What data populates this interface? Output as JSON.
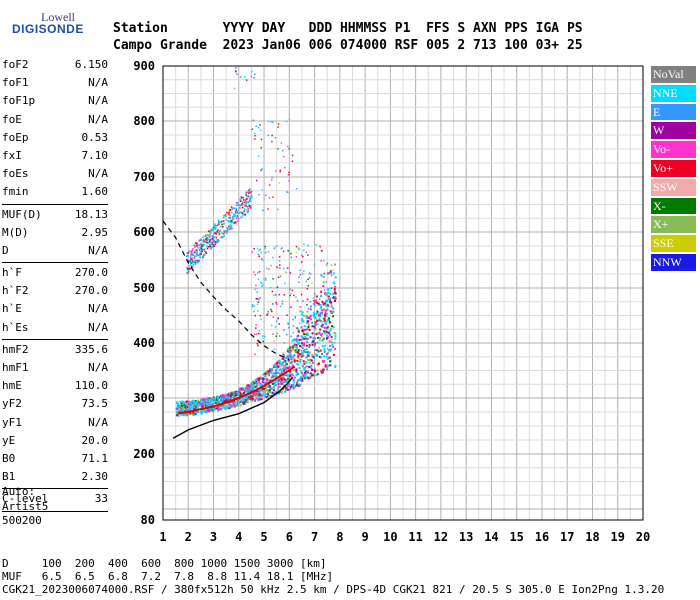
{
  "logo": {
    "line1": "Lowell",
    "line2": "DIGISONDE"
  },
  "header": {
    "line1": "Station       YYYY DAY   DDD HHMMSS P1  FFS S AXN PPS IGA PS",
    "line2": "Campo Grande  2023 Jan06 006 074000 RSF 005 2 713 100 03+ 25"
  },
  "params": {
    "group1": [
      {
        "name": "foF2",
        "value": "6.150"
      },
      {
        "name": "foF1",
        "value": "N/A"
      },
      {
        "name": "foF1p",
        "value": "N/A"
      },
      {
        "name": "foE",
        "value": "N/A"
      },
      {
        "name": "foEp",
        "value": "0.53"
      },
      {
        "name": "fxI",
        "value": "7.10"
      },
      {
        "name": "foEs",
        "value": "N/A"
      },
      {
        "name": "fmin",
        "value": "1.60"
      }
    ],
    "group2": [
      {
        "name": "MUF(D)",
        "value": "18.13"
      },
      {
        "name": "M(D)",
        "value": "2.95"
      },
      {
        "name": "D",
        "value": "N/A"
      }
    ],
    "group3": [
      {
        "name": "h`F",
        "value": "270.0"
      },
      {
        "name": "h`F2",
        "value": "270.0"
      },
      {
        "name": "h`E",
        "value": "N/A"
      },
      {
        "name": "h`Es",
        "value": "N/A"
      }
    ],
    "group4": [
      {
        "name": "hmF2",
        "value": "335.6"
      },
      {
        "name": "hmF1",
        "value": "N/A"
      },
      {
        "name": "hmE",
        "value": "110.0"
      },
      {
        "name": "yF2",
        "value": "73.5"
      },
      {
        "name": "yF1",
        "value": "N/A"
      },
      {
        "name": "yE",
        "value": "20.0"
      },
      {
        "name": "B0",
        "value": "71.1"
      },
      {
        "name": "B1",
        "value": "2.30"
      }
    ],
    "group5": [
      {
        "name": "C-level",
        "value": "33"
      }
    ]
  },
  "auto_block": {
    "line1": "Auto:",
    "line2": "Artist5",
    "line3": "500200"
  },
  "legend": [
    {
      "label": "NoVal",
      "color": "#808080"
    },
    {
      "label": "NNE",
      "color": "#00ddff"
    },
    {
      "label": "E",
      "color": "#3399ff"
    },
    {
      "label": "W",
      "color": "#a000a0"
    },
    {
      "label": "Vo-",
      "color": "#ff33cc"
    },
    {
      "label": "Vo+",
      "color": "#ee0022"
    },
    {
      "label": "SSW",
      "color": "#f4aaaa"
    },
    {
      "label": "X-",
      "color": "#007a00"
    },
    {
      "label": "X+",
      "color": "#88bb55"
    },
    {
      "label": "SSE",
      "color": "#cccc00"
    },
    {
      "label": "NNW",
      "color": "#1a1ae6"
    }
  ],
  "footer": {
    "line1": "D     100  200  400  600  800 1000 1500 3000 [km]",
    "line2": "MUF   6.5  6.5  6.8  7.2  7.8  8.8 11.4 18.1 [MHz]",
    "line3": "CGK21_2023006074000.RSF / 380fx512h 50 kHz 2.5 km / DPS-4D CGK21 821 / 20.5 S 305.0 E Ion2Png 1.3.20"
  },
  "chart_data": {
    "type": "scatter",
    "xlabel": "",
    "ylabel": "",
    "xlim": [
      1,
      20
    ],
    "ylim": [
      80,
      900
    ],
    "x_ticks": [
      "1",
      "2",
      "3",
      "4",
      "5",
      "6",
      "7",
      "8",
      "9",
      "10",
      "11",
      "12",
      "13",
      "14",
      "15",
      "16",
      "17",
      "18",
      "19",
      "20"
    ],
    "y_ticks": [
      "80",
      "200",
      "300",
      "400",
      "500",
      "600",
      "700",
      "800",
      "900"
    ],
    "grid": true,
    "legend_position": "right",
    "traces": {
      "profile_solid": [
        [
          1.4,
          228
        ],
        [
          2,
          243
        ],
        [
          3,
          260
        ],
        [
          4,
          272
        ],
        [
          5,
          292
        ],
        [
          5.6,
          312
        ],
        [
          5.9,
          325
        ],
        [
          6.1,
          336
        ]
      ],
      "profile_dashed": [
        [
          1.0,
          620
        ],
        [
          1.5,
          590
        ],
        [
          2.0,
          545
        ],
        [
          2.5,
          510
        ],
        [
          3.0,
          484
        ],
        [
          3.5,
          460
        ],
        [
          4.0,
          440
        ],
        [
          4.5,
          415
        ],
        [
          5.0,
          395
        ],
        [
          5.5,
          380
        ],
        [
          6.0,
          370
        ]
      ],
      "red_trace": [
        [
          1.6,
          273
        ],
        [
          2.0,
          275
        ],
        [
          2.5,
          280
        ],
        [
          3.0,
          285
        ],
        [
          3.5,
          292
        ],
        [
          4.0,
          300
        ],
        [
          4.5,
          310
        ],
        [
          5.0,
          322
        ],
        [
          5.5,
          336
        ],
        [
          6.0,
          350
        ],
        [
          6.2,
          358
        ]
      ],
      "main_echo_band": {
        "series": "NNE/E/Vo+ mixed",
        "x_range": [
          1.5,
          7.8
        ],
        "h_start": [
          270,
          300
        ],
        "h_end": [
          350,
          550
        ]
      },
      "second_hop_band": {
        "x_range": [
          1.9,
          4.5
        ],
        "h_start": [
          540,
          580
        ],
        "h_end": [
          620,
          700
        ]
      },
      "third_hop_points": {
        "x_range": [
          3.5,
          5.0
        ],
        "h_range": [
          860,
          900
        ]
      }
    }
  }
}
